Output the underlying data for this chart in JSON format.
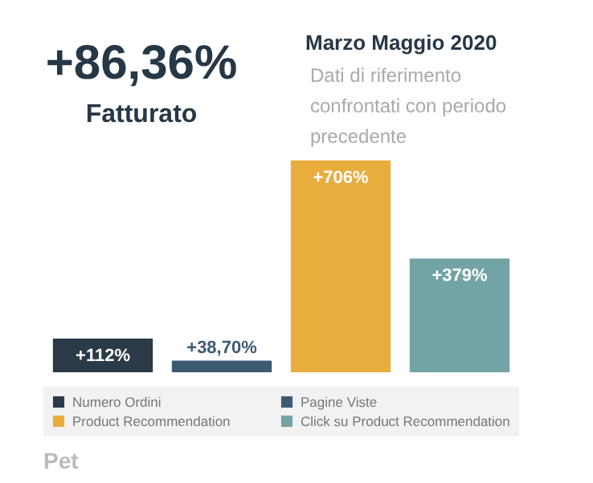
{
  "chart_data": {
    "type": "bar",
    "title": "+86,36%",
    "subtitle": "Fatturato",
    "annotations": [
      "Marzo Maggio 2020",
      "Dati di riferimento confrontati con periodo precedente",
      "Pet"
    ],
    "categories": [
      null,
      null,
      null,
      null
    ],
    "series": [
      {
        "name": "Numero Ordini",
        "color": "#2b3a47",
        "values": [
          112,
          null,
          null,
          null
        ],
        "value_labels": [
          "+112%",
          null,
          null,
          null
        ]
      },
      {
        "name": "Pagine Viste",
        "color": "#3d5a73",
        "values": [
          null,
          38.7,
          null,
          null
        ],
        "value_labels": [
          null,
          "+38,70%",
          null,
          null
        ]
      },
      {
        "name": "Product Recommendation",
        "color": "#e8ad3c",
        "values": [
          null,
          null,
          706,
          null
        ],
        "value_labels": [
          null,
          null,
          "+706%",
          null
        ]
      },
      {
        "name": "Click su Product Recommendation",
        "color": "#72a3a5",
        "values": [
          null,
          null,
          null,
          379
        ],
        "value_labels": [
          null,
          null,
          null,
          "+379%"
        ]
      }
    ],
    "stacked": true,
    "legend": "bottom"
  }
}
